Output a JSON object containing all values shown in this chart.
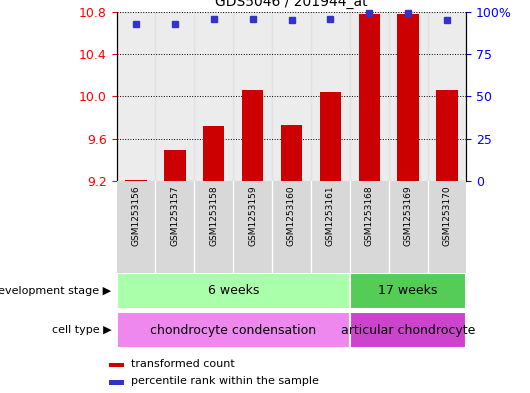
{
  "title": "GDS5046 / 201944_at",
  "samples": [
    "GSM1253156",
    "GSM1253157",
    "GSM1253158",
    "GSM1253159",
    "GSM1253160",
    "GSM1253161",
    "GSM1253168",
    "GSM1253169",
    "GSM1253170"
  ],
  "bar_values": [
    9.21,
    9.49,
    9.72,
    10.06,
    9.73,
    10.04,
    10.78,
    10.78,
    10.06
  ],
  "percentile_values": [
    93,
    93,
    96,
    96,
    95,
    96,
    99,
    99,
    95
  ],
  "ylim_left": [
    9.2,
    10.8
  ],
  "ylim_right": [
    0,
    100
  ],
  "yticks_left": [
    9.2,
    9.6,
    10.0,
    10.4,
    10.8
  ],
  "yticks_right": [
    0,
    25,
    50,
    75,
    100
  ],
  "bar_color": "#cc0000",
  "dot_color": "#3333cc",
  "bar_bottom": 9.2,
  "development_stage_groups": [
    {
      "label": "6 weeks",
      "start": 0,
      "end": 6,
      "color": "#aaffaa"
    },
    {
      "label": "17 weeks",
      "start": 6,
      "end": 9,
      "color": "#55cc55"
    }
  ],
  "cell_type_groups": [
    {
      "label": "chondrocyte condensation",
      "start": 0,
      "end": 6,
      "color": "#ee88ee"
    },
    {
      "label": "articular chondrocyte",
      "start": 6,
      "end": 9,
      "color": "#cc44cc"
    }
  ],
  "legend_bar_label": "transformed count",
  "legend_dot_label": "percentile rank within the sample",
  "dev_stage_label": "development stage",
  "cell_type_label": "cell type"
}
